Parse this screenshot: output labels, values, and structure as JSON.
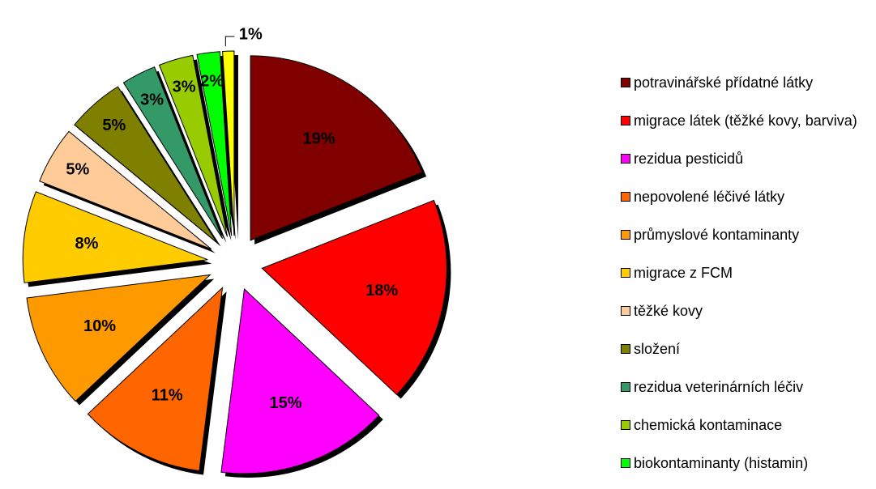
{
  "chart_data": {
    "type": "pie",
    "categories": [
      "potravinářské přídatné látky",
      "migrace látek (těžké kovy, barviva)",
      "rezidua pesticidů",
      "nepovolené léčivé látky",
      "průmyslové kontaminanty",
      "migrace z FCM",
      "těžké kovy",
      "složení",
      "rezidua veterinárních léčiv",
      "chemická kontaminace",
      "biokontaminanty (histamin)",
      null
    ],
    "values": [
      19,
      18,
      15,
      11,
      10,
      8,
      5,
      5,
      3,
      3,
      2,
      1
    ],
    "value_labels": [
      "19%",
      "18%",
      "15%",
      "11%",
      "10%",
      "8%",
      "5%",
      "5%",
      "3%",
      "3%",
      "2%",
      "1%"
    ],
    "colors": [
      "#800000",
      "#ff0000",
      "#ff00ff",
      "#ff6600",
      "#ff9900",
      "#ffcc00",
      "#ffcc99",
      "#808000",
      "#339966",
      "#99cc00",
      "#00ff00",
      "#ffff00"
    ],
    "legend": "right"
  }
}
